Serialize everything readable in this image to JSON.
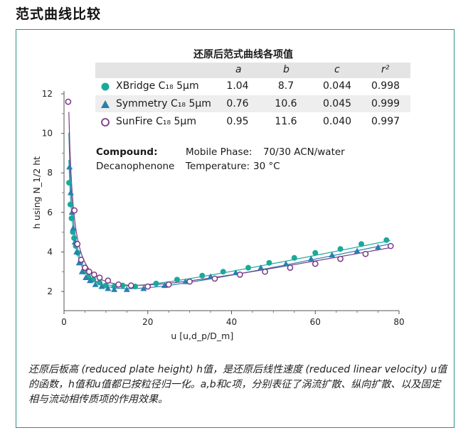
{
  "page_title": "范式曲线比较",
  "table": {
    "title": "还原后范式曲线各项值",
    "headers": [
      "a",
      "b",
      "c",
      "r²"
    ],
    "rows": [
      {
        "name": "XBridge C₁₈ 5μm",
        "marker": "circle-filled",
        "values": [
          "1.04",
          "8.7",
          "0.044",
          "0.998"
        ]
      },
      {
        "name": "Symmetry C₁₈ 5μm",
        "marker": "triangle",
        "values": [
          "0.76",
          "10.6",
          "0.045",
          "0.999"
        ]
      },
      {
        "name": "SunFire C₁₈ 5μm",
        "marker": "circle-open",
        "values": [
          "0.95",
          "11.6",
          "0.040",
          "0.997"
        ]
      }
    ]
  },
  "conditions": {
    "compound_label": "Compound:",
    "compound_value": "Decanophenone",
    "mobile_phase_label": "Mobile Phase:",
    "mobile_phase_value": "70/30 ACN/water",
    "temperature_label": "Temperature:",
    "temperature_value": "30 °C"
  },
  "caption": "还原后板高 (reduced plate height) h值，是还原后线性速度 (reduced linear velocity) u值的函数，h值和u值都已按粒径归一化。a,b和c项，分别表征了涡流扩散、纵向扩散、以及固定相与流动相传质项的作用效果。",
  "colors": {
    "xbridge": "#1aa99a",
    "symmetry": "#2a7fb0",
    "sunfire": "#7b3a86",
    "frame": "#2f8f8a"
  },
  "chart_data": {
    "type": "scatter",
    "xlabel": "u [u,d_p/D_m]",
    "ylabel": "h using N_1/2 ht",
    "xlim": [
      0,
      80
    ],
    "ylim": [
      1,
      12
    ],
    "xticks": [
      0,
      20,
      40,
      60,
      80
    ],
    "yticks": [
      2,
      4,
      6,
      8,
      10,
      12
    ],
    "series": [
      {
        "name": "XBridge C18 5μm",
        "marker": "circle-filled",
        "color": "#1aa99a",
        "a": 1.04,
        "b": 8.7,
        "c": 0.044,
        "x": [
          1.2,
          1.5,
          1.8,
          2.1,
          2.4,
          2.8,
          3.3,
          4.0,
          4.8,
          5.8,
          7.0,
          8.5,
          10,
          12,
          14,
          17,
          22,
          27,
          33,
          38,
          44,
          49,
          55,
          60,
          66,
          71,
          77
        ],
        "y": [
          7.5,
          6.4,
          5.7,
          5.0,
          4.7,
          4.3,
          3.95,
          3.5,
          3.0,
          2.75,
          2.6,
          2.45,
          2.3,
          2.25,
          2.3,
          2.25,
          2.4,
          2.6,
          2.8,
          3.0,
          3.2,
          3.45,
          3.7,
          3.95,
          4.15,
          4.4,
          4.6
        ]
      },
      {
        "name": "Symmetry C18 5μm",
        "marker": "triangle",
        "color": "#2a7fb0",
        "a": 0.76,
        "b": 10.6,
        "c": 0.045,
        "x": [
          1.3,
          1.6,
          1.9,
          2.2,
          2.6,
          3.0,
          3.6,
          4.3,
          5.2,
          6.2,
          7.5,
          9,
          10.5,
          12,
          15,
          19,
          24,
          29,
          35,
          41,
          47,
          53,
          59,
          64,
          70,
          75
        ],
        "y": [
          8.3,
          7.0,
          6.0,
          5.2,
          4.5,
          4.0,
          3.45,
          3.0,
          2.7,
          2.55,
          2.35,
          2.25,
          2.15,
          2.1,
          2.1,
          2.15,
          2.3,
          2.5,
          2.75,
          2.95,
          3.2,
          3.4,
          3.65,
          3.85,
          4.05,
          4.25
        ]
      },
      {
        "name": "SunFire C18 5μm",
        "marker": "circle-open",
        "color": "#7b3a86",
        "a": 0.95,
        "b": 11.6,
        "c": 0.04,
        "x": [
          1.0,
          2.5,
          3.2,
          4.1,
          5.0,
          6.0,
          7.2,
          8.5,
          10.5,
          13,
          16,
          20,
          25,
          30,
          36,
          42,
          48,
          54,
          60,
          66,
          72,
          78
        ],
        "y": [
          11.6,
          6.1,
          4.4,
          3.6,
          3.2,
          3.0,
          2.85,
          2.7,
          2.55,
          2.35,
          2.3,
          2.25,
          2.35,
          2.5,
          2.65,
          2.85,
          3.0,
          3.2,
          3.4,
          3.65,
          3.9,
          4.3
        ]
      }
    ]
  }
}
